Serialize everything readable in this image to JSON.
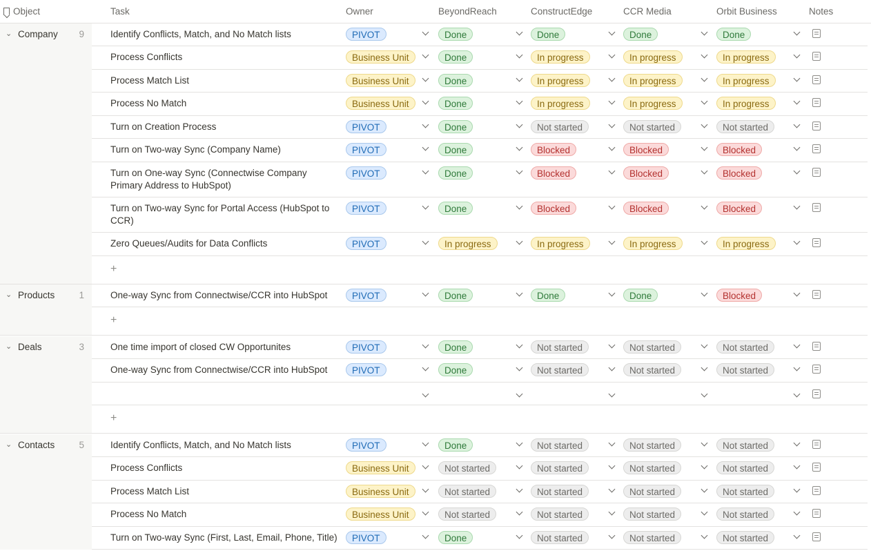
{
  "header": {
    "object": "Object",
    "task": "Task",
    "owner": "Owner",
    "columns": [
      "BeyondReach",
      "ConstructEdge",
      "CCR Media",
      "Orbit Business"
    ],
    "notes": "Notes"
  },
  "groups": [
    {
      "name": "Company",
      "count": "9",
      "rows": [
        {
          "task": "Identify Conflicts, Match, and No Match lists",
          "owner": "PIVOT",
          "statuses": [
            "Done",
            "Done",
            "Done",
            "Done"
          ]
        },
        {
          "task": "Process Conflicts",
          "owner": "Business Unit",
          "statuses": [
            "Done",
            "In progress",
            "In progress",
            "In progress"
          ]
        },
        {
          "task": "Process Match List",
          "owner": "Business Unit",
          "statuses": [
            "Done",
            "In progress",
            "In progress",
            "In progress"
          ]
        },
        {
          "task": "Process No Match",
          "owner": "Business Unit",
          "statuses": [
            "Done",
            "In progress",
            "In progress",
            "In progress"
          ]
        },
        {
          "task": "Turn on Creation Process",
          "owner": "PIVOT",
          "statuses": [
            "Done",
            "Not started",
            "Not started",
            "Not started"
          ]
        },
        {
          "task": "Turn on Two-way Sync (Company Name)",
          "owner": "PIVOT",
          "statuses": [
            "Done",
            "Blocked",
            "Blocked",
            "Blocked"
          ]
        },
        {
          "task": "Turn on One-way Sync (Connectwise Company Primary Address to HubSpot)",
          "owner": "PIVOT",
          "statuses": [
            "Done",
            "Blocked",
            "Blocked",
            "Blocked"
          ]
        },
        {
          "task": "Turn on Two-way Sync for Portal Access (HubSpot to CCR)",
          "owner": "PIVOT",
          "statuses": [
            "Done",
            "Blocked",
            "Blocked",
            "Blocked"
          ]
        },
        {
          "task": "Zero Queues/Audits for Data Conflicts",
          "owner": "PIVOT",
          "statuses": [
            "In progress",
            "In progress",
            "In progress",
            "In progress"
          ]
        }
      ]
    },
    {
      "name": "Products",
      "count": "1",
      "rows": [
        {
          "task": "One-way Sync from Connectwise/CCR into HubSpot",
          "owner": "PIVOT",
          "statuses": [
            "Done",
            "Done",
            "Done",
            "Blocked"
          ]
        }
      ]
    },
    {
      "name": "Deals",
      "count": "3",
      "rows": [
        {
          "task": "One time import of closed CW Opportunites",
          "owner": "PIVOT",
          "statuses": [
            "Done",
            "Not started",
            "Not started",
            "Not started"
          ]
        },
        {
          "task": "One-way Sync from Connectwise/CCR into HubSpot",
          "owner": "PIVOT",
          "statuses": [
            "Done",
            "Not started",
            "Not started",
            "Not started"
          ]
        },
        {
          "task": "",
          "owner": "",
          "statuses": [
            "",
            "",
            "",
            ""
          ]
        }
      ]
    },
    {
      "name": "Contacts",
      "count": "5",
      "rows": [
        {
          "task": "Identify Conflicts, Match, and No Match lists",
          "owner": "PIVOT",
          "statuses": [
            "Done",
            "Not started",
            "Not started",
            "Not started"
          ]
        },
        {
          "task": "Process Conflicts",
          "owner": "Business Unit",
          "statuses": [
            "Not started",
            "Not started",
            "Not started",
            "Not started"
          ]
        },
        {
          "task": "Process Match List",
          "owner": "Business Unit",
          "statuses": [
            "Not started",
            "Not started",
            "Not started",
            "Not started"
          ]
        },
        {
          "task": "Process No Match",
          "owner": "Business Unit",
          "statuses": [
            "Not started",
            "Not started",
            "Not started",
            "Not started"
          ]
        },
        {
          "task": "Turn on Two-way Sync (First, Last, Email, Phone, Title)",
          "owner": "PIVOT",
          "statuses": [
            "Done",
            "Not started",
            "Not started",
            "Not started"
          ]
        }
      ]
    }
  ],
  "add_row_symbol": "+",
  "colors": {
    "owner": {
      "PIVOT": "#dbeafe",
      "Business Unit": "#fdf3c8"
    },
    "status": {
      "Done": "#dcf2dd",
      "In progress": "#fdf3c8",
      "Not started": "#ededed",
      "Blocked": "#fbdada"
    }
  },
  "icons": {
    "object_header": "bookmark-icon",
    "group_toggle": "chevron-down-icon",
    "cell_dropdown": "chevron-down-icon",
    "notes": "notes-icon"
  }
}
